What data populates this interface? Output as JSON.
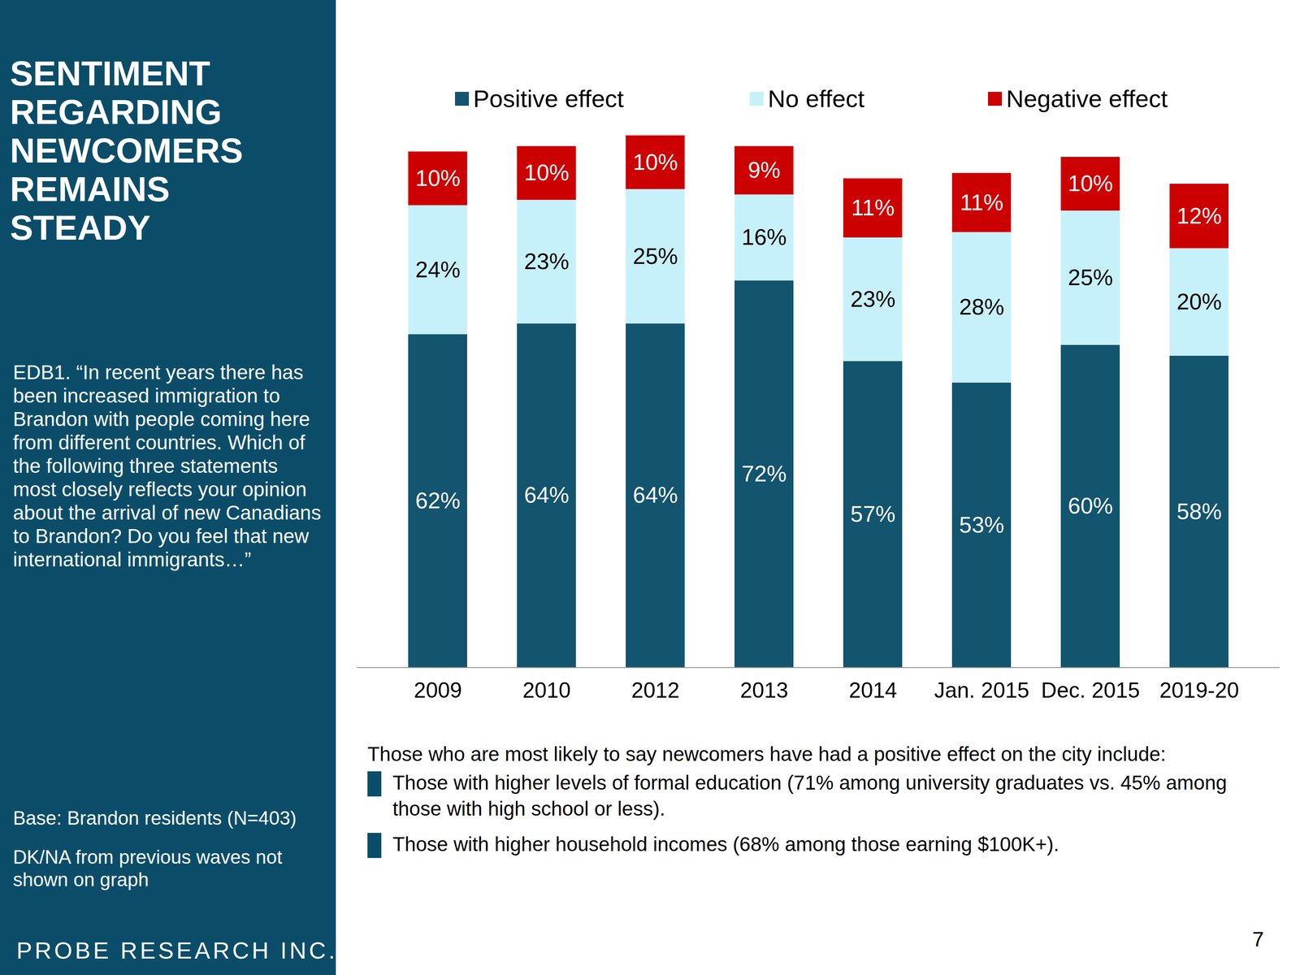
{
  "chart_data": {
    "type": "bar",
    "title": "SENTIMENT REGARDING NEWCOMERS REMAINS STEADY",
    "subtitle": "EDB1. “In recent years there has been increased immigration to Brandon with people coming here from different countries. Which of the following three statements most closely reflects your opinion about the arrival of new Canadians to Brandon? Do you feel that new international immigrants…”",
    "categories": [
      "2009",
      "2010",
      "2012",
      "2013",
      "2014",
      "Jan. 2015",
      "Dec. 2015",
      "2019-20"
    ],
    "series": [
      {
        "name": "Positive effect",
        "color": "#13546f",
        "values": [
          62,
          64,
          64,
          72,
          57,
          53,
          60,
          58
        ],
        "value_labels": [
          "62%",
          "64%",
          "64%",
          "72%",
          "57%",
          "53%",
          "60%",
          "58%"
        ]
      },
      {
        "name": "No effect",
        "color": "#c6f1fb",
        "values": [
          24,
          23,
          25,
          16,
          23,
          28,
          25,
          20
        ],
        "value_labels": [
          "24%",
          "23%",
          "25%",
          "16%",
          "23%",
          "28%",
          "25%",
          "20%"
        ]
      },
      {
        "name": "Negative effect",
        "color": "#cc0000",
        "values": [
          10,
          10,
          10,
          9,
          11,
          11,
          10,
          12
        ],
        "value_labels": [
          "10%",
          "10%",
          "10%",
          "9%",
          "11%",
          "11%",
          "10%",
          "12%"
        ]
      }
    ],
    "ylim": [
      0,
      100
    ],
    "stacked": true,
    "data_labels": true,
    "tick_labels": "x",
    "legend": "top",
    "annotations": {
      "intro": "Those who are most likely to say newcomers have had a positive effect on the city include:",
      "bullets": [
        "Those with higher levels of formal education (71% among university graduates vs. 45% among those with high school or less).",
        "Those with higher household incomes (68% among those earning $100K+)."
      ]
    },
    "base": "Base:  Brandon residents (N=403)",
    "note": "DK/NA from previous waves not shown on graph",
    "source": "PROBE RESEARCH INC.",
    "page": 7
  }
}
